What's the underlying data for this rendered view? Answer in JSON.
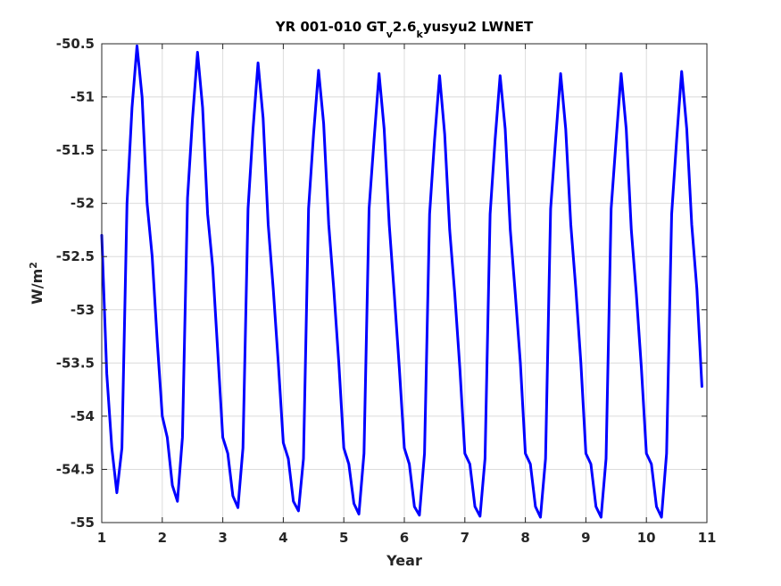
{
  "chart_data": {
    "type": "line",
    "title": {
      "parts": [
        {
          "text": "YR 001-010 GT",
          "sub": false
        },
        {
          "text": "v",
          "sub": true
        },
        {
          "text": "2.6",
          "sub": false
        },
        {
          "text": "k",
          "sub": true
        },
        {
          "text": "yusyu2 LWNET",
          "sub": false
        }
      ]
    },
    "xlabel": "Year",
    "ylabel": {
      "base": "W/m",
      "sup": "2"
    },
    "xlim": [
      1,
      11
    ],
    "ylim": [
      -55,
      -50.5
    ],
    "xticks": [
      1,
      2,
      3,
      4,
      5,
      6,
      7,
      8,
      9,
      10,
      11
    ],
    "xtick_labels": [
      "1",
      "2",
      "3",
      "4",
      "5",
      "6",
      "7",
      "8",
      "9",
      "10",
      "11"
    ],
    "yticks": [
      -55,
      -54.5,
      -54,
      -53.5,
      -53,
      -52.5,
      -52,
      -51.5,
      -51,
      -50.5
    ],
    "ytick_labels": [
      "-55",
      "-54.5",
      "-54",
      "-53.5",
      "-53",
      "-52.5",
      "-52",
      "-51.5",
      "-51",
      "-50.5"
    ],
    "grid": true,
    "colors": {
      "line": "#0000ff",
      "grid": "#dcdcdc",
      "axis": "#262626"
    },
    "series": [
      {
        "x": [
          1.0,
          1.0833,
          1.1667,
          1.25,
          1.3333,
          1.4167,
          1.5,
          1.5833,
          1.6667,
          1.75,
          1.8333,
          1.9167,
          2.0,
          2.0833,
          2.1667,
          2.25,
          2.3333,
          2.4167,
          2.5,
          2.5833,
          2.6667,
          2.75,
          2.8333,
          2.9167,
          3.0,
          3.0833,
          3.1667,
          3.25,
          3.3333,
          3.4167,
          3.5,
          3.5833,
          3.6667,
          3.75,
          3.8333,
          3.9167,
          4.0,
          4.0833,
          4.1667,
          4.25,
          4.3333,
          4.4167,
          4.5,
          4.5833,
          4.6667,
          4.75,
          4.8333,
          4.9167,
          5.0,
          5.0833,
          5.1667,
          5.25,
          5.3333,
          5.4167,
          5.5,
          5.5833,
          5.6667,
          5.75,
          5.8333,
          5.9167,
          6.0,
          6.0833,
          6.1667,
          6.25,
          6.3333,
          6.4167,
          6.5,
          6.5833,
          6.6667,
          6.75,
          6.8333,
          6.9167,
          7.0,
          7.0833,
          7.1667,
          7.25,
          7.3333,
          7.4167,
          7.5,
          7.5833,
          7.6667,
          7.75,
          7.8333,
          7.9167,
          8.0,
          8.0833,
          8.1667,
          8.25,
          8.3333,
          8.4167,
          8.5,
          8.5833,
          8.6667,
          8.75,
          8.8333,
          8.9167,
          9.0,
          9.0833,
          9.1667,
          9.25,
          9.3333,
          9.4167,
          9.5,
          9.5833,
          9.6667,
          9.75,
          9.8333,
          9.9167,
          10.0,
          10.0833,
          10.1667,
          10.25,
          10.3333,
          10.4167,
          10.5,
          10.5833,
          10.6667,
          10.75,
          10.8333,
          10.9167
        ],
        "values": [
          -52.3,
          -53.6,
          -54.3,
          -54.72,
          -54.3,
          -52.0,
          -51.1,
          -50.52,
          -51.0,
          -52.0,
          -52.5,
          -53.3,
          -54.0,
          -54.2,
          -54.65,
          -54.8,
          -54.2,
          -51.95,
          -51.2,
          -50.58,
          -51.1,
          -52.1,
          -52.6,
          -53.4,
          -54.2,
          -54.35,
          -54.75,
          -54.86,
          -54.3,
          -52.05,
          -51.3,
          -50.68,
          -51.2,
          -52.2,
          -52.8,
          -53.5,
          -54.25,
          -54.4,
          -54.8,
          -54.89,
          -54.4,
          -52.05,
          -51.35,
          -50.75,
          -51.25,
          -52.2,
          -52.8,
          -53.5,
          -54.3,
          -54.45,
          -54.82,
          -54.92,
          -54.35,
          -52.05,
          -51.4,
          -50.78,
          -51.3,
          -52.2,
          -52.85,
          -53.55,
          -54.3,
          -54.45,
          -54.85,
          -54.93,
          -54.35,
          -52.1,
          -51.4,
          -50.8,
          -51.35,
          -52.25,
          -52.85,
          -53.55,
          -54.35,
          -54.45,
          -54.85,
          -54.94,
          -54.4,
          -52.1,
          -51.4,
          -50.8,
          -51.3,
          -52.25,
          -52.85,
          -53.5,
          -54.35,
          -54.45,
          -54.85,
          -54.95,
          -54.4,
          -52.05,
          -51.4,
          -50.78,
          -51.3,
          -52.2,
          -52.8,
          -53.5,
          -54.35,
          -54.45,
          -54.85,
          -54.95,
          -54.4,
          -52.05,
          -51.4,
          -50.78,
          -51.3,
          -52.25,
          -52.85,
          -53.55,
          -54.35,
          -54.45,
          -54.85,
          -54.95,
          -54.35,
          -52.1,
          -51.4,
          -50.76,
          -51.3,
          -52.2,
          -52.8,
          -53.72
        ]
      }
    ]
  }
}
